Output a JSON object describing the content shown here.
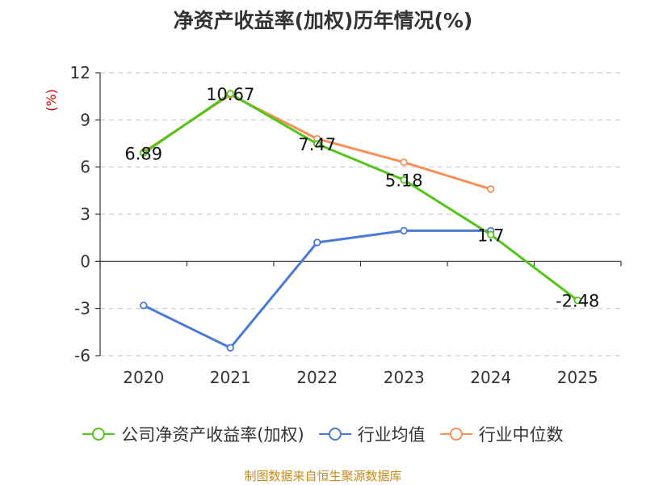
{
  "chart_data": {
    "type": "line",
    "title": "净资产收益率(加权)历年情况(%)",
    "unit_label": "(%)",
    "categories": [
      "2020",
      "2021",
      "2022",
      "2023",
      "2024",
      "2025"
    ],
    "ylim": [
      -6,
      12
    ],
    "yticks": [
      12,
      9,
      6,
      3,
      0,
      -3,
      -6
    ],
    "grid": true,
    "legend_position": "bottom",
    "series": [
      {
        "name": "公司净资产收益率(加权)",
        "color": "#52c41a",
        "values": [
          6.89,
          10.67,
          7.47,
          5.18,
          1.7,
          -2.48
        ],
        "labels": [
          "6.89",
          "10.67",
          "7.47",
          "5.18",
          "1.7",
          "-2.48"
        ]
      },
      {
        "name": "行业均值",
        "color": "#4a7ad8",
        "values": [
          -2.8,
          -5.5,
          1.2,
          1.95,
          1.95,
          null
        ]
      },
      {
        "name": "行业中位数",
        "color": "#f79058",
        "values": [
          6.95,
          10.6,
          7.8,
          6.3,
          4.6,
          null
        ]
      }
    ]
  },
  "footer": {
    "source": "制图数据来自恒生聚源数据库"
  }
}
